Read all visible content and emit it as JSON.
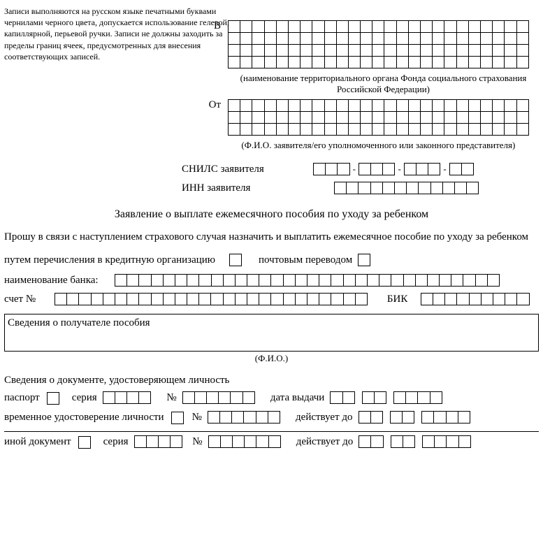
{
  "instructions": "Записи выполняются на русском языке печатными буквами чернилами черного цвета, допускается использование гелевой, капиллярной, перьевой ручки. Записи не должны заходить за пределы границ ячеек, предусмотренных для внесения соответствующих записей.",
  "addr_to_label": "В",
  "addr_to_caption": "(наименование территориального органа Фонда социального страхования Российской Федерации)",
  "addr_from_label": "От",
  "addr_from_caption": "(Ф.И.О. заявителя/его уполномоченного или законного представителя)",
  "snils_label": "СНИЛС заявителя",
  "inn_label": "ИНН заявителя",
  "title": "Заявление о выплате ежемесячного пособия по уходу за ребенком",
  "para1": "Прошу в связи с наступлением страхового случая назначить и выплатить ежемесячное пособие по уходу за ребенком",
  "pay_opt1": "путем перечисления в кредитную организацию",
  "pay_opt2": "почтовым переводом",
  "bank_label": "наименование банка:",
  "account_label": "счет №",
  "bik_label": "БИК",
  "recipient_section": "Сведения о получателе пособия",
  "fio_caption": "(Ф.И.О.)",
  "doc_section": "Сведения о документе, удостоверяющем личность",
  "passport": "паспорт",
  "series": "серия",
  "number": "№",
  "issue_date": "дата выдачи",
  "temp_id": "временное удостоверение личности",
  "valid_until": "действует до",
  "other_doc": "иной документ",
  "grid_cols_to": 25,
  "grid_rows_to": 4,
  "grid_rows_from": 3,
  "snils_seg": [
    3,
    3,
    3,
    2
  ],
  "inn_cells": 12,
  "bank_cells": 32,
  "account_cells": 26,
  "bik_cells": 9,
  "series_cells": 4,
  "num_cells": 6,
  "date_seg": [
    2,
    2,
    4
  ],
  "cell_border": "#000000",
  "background": "#ffffff"
}
